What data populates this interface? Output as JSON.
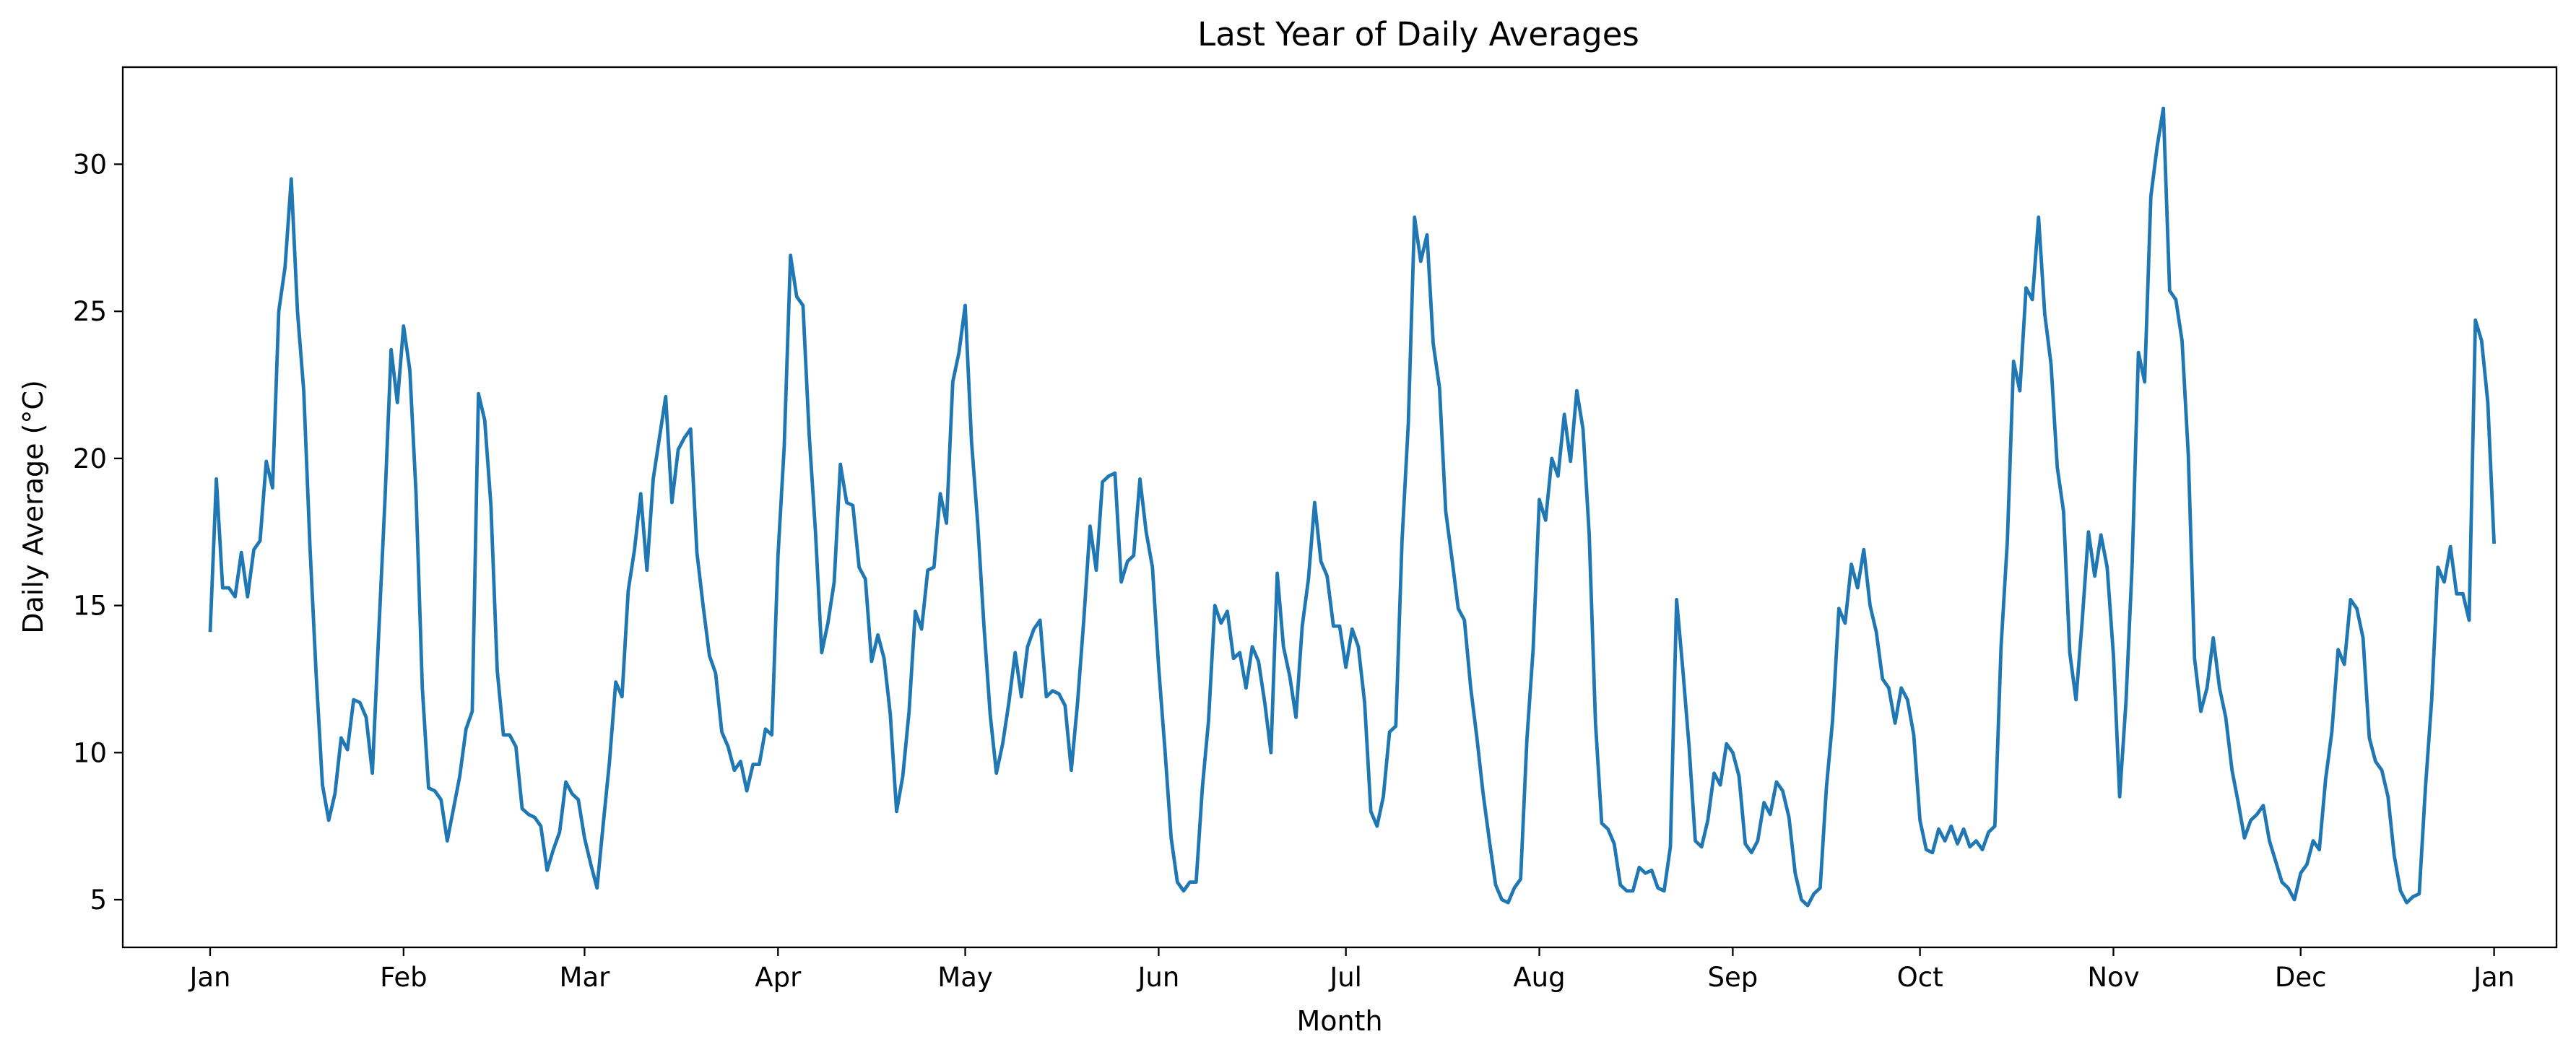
{
  "chart_data": {
    "type": "line",
    "title": "Last Year of Daily Averages",
    "xlabel": "Month",
    "ylabel": "Daily Average (°C)",
    "x_start": "2024-01-01",
    "x_end": "2024-12-28",
    "xlim": [
      "2023-12-18",
      "2025-01-11"
    ],
    "ylim": [
      3.38,
      33.3
    ],
    "grid": false,
    "x_ticks": [
      {
        "date": "2024-01-01",
        "label": "Jan"
      },
      {
        "date": "2024-02-01",
        "label": "Feb"
      },
      {
        "date": "2024-03-01",
        "label": "Mar"
      },
      {
        "date": "2024-04-01",
        "label": "Apr"
      },
      {
        "date": "2024-05-01",
        "label": "May"
      },
      {
        "date": "2024-06-01",
        "label": "Jun"
      },
      {
        "date": "2024-07-01",
        "label": "Jul"
      },
      {
        "date": "2024-08-01",
        "label": "Aug"
      },
      {
        "date": "2024-09-01",
        "label": "Sep"
      },
      {
        "date": "2024-10-01",
        "label": "Oct"
      },
      {
        "date": "2024-11-01",
        "label": "Nov"
      },
      {
        "date": "2024-12-01",
        "label": "Dec"
      },
      {
        "date": "2025-01-01",
        "label": "Jan"
      }
    ],
    "y_ticks": [
      {
        "value": 5,
        "label": "5"
      },
      {
        "value": 10,
        "label": "10"
      },
      {
        "value": 15,
        "label": "15"
      },
      {
        "value": 20,
        "label": "20"
      },
      {
        "value": 25,
        "label": "25"
      },
      {
        "value": 30,
        "label": "30"
      }
    ],
    "series": [
      {
        "color": "#1f77b4",
        "values": [
          14.1,
          19.3,
          15.6,
          15.6,
          15.3,
          16.8,
          15.3,
          16.9,
          17.2,
          19.9,
          19.0,
          25.0,
          26.5,
          29.5,
          25.0,
          22.3,
          17.0,
          12.6,
          8.9,
          7.7,
          8.6,
          10.5,
          10.1,
          11.8,
          11.7,
          11.2,
          9.3,
          14.0,
          18.5,
          23.7,
          21.9,
          24.5,
          23.0,
          18.8,
          12.2,
          8.8,
          8.7,
          8.4,
          7.0,
          8.1,
          9.2,
          10.8,
          11.4,
          22.2,
          21.3,
          18.4,
          12.8,
          10.6,
          10.6,
          10.2,
          8.1,
          7.9,
          7.8,
          7.5,
          6.0,
          6.7,
          7.3,
          9.0,
          8.6,
          8.4,
          7.1,
          6.2,
          5.4,
          7.6,
          9.7,
          12.4,
          11.9,
          15.5,
          16.9,
          18.8,
          16.2,
          19.3,
          20.7,
          22.1,
          18.5,
          20.3,
          20.7,
          21.0,
          16.8,
          15.0,
          13.3,
          12.7,
          10.7,
          10.2,
          9.4,
          9.7,
          8.7,
          9.6,
          9.6,
          10.8,
          10.6,
          16.7,
          20.4,
          26.9,
          25.5,
          25.2,
          20.8,
          17.5,
          13.4,
          14.4,
          15.8,
          19.8,
          18.5,
          18.4,
          16.3,
          15.9,
          13.1,
          14.0,
          13.2,
          11.3,
          8.0,
          9.2,
          11.4,
          14.8,
          14.2,
          16.2,
          16.3,
          18.8,
          17.8,
          22.6,
          23.6,
          25.2,
          20.6,
          17.8,
          14.3,
          11.3,
          9.3,
          10.3,
          11.7,
          13.4,
          11.9,
          13.6,
          14.2,
          14.5,
          11.9,
          12.1,
          12.0,
          11.6,
          9.4,
          11.7,
          14.5,
          17.7,
          16.2,
          19.2,
          19.4,
          19.5,
          15.8,
          16.5,
          16.7,
          19.3,
          17.5,
          16.3,
          12.9,
          10.1,
          7.1,
          5.6,
          5.3,
          5.6,
          5.6,
          8.8,
          11.1,
          15.0,
          14.4,
          14.8,
          13.2,
          13.4,
          12.2,
          13.6,
          13.1,
          11.7,
          10.0,
          16.1,
          13.6,
          12.6,
          11.2,
          14.3,
          15.9,
          18.5,
          16.5,
          16.0,
          14.3,
          14.3,
          12.9,
          14.2,
          13.6,
          11.7,
          8.0,
          7.5,
          8.5,
          10.7,
          10.9,
          17.2,
          21.2,
          28.2,
          26.7,
          27.6,
          23.9,
          22.4,
          18.2,
          16.6,
          14.9,
          14.5,
          12.2,
          10.5,
          8.6,
          7.0,
          5.5,
          5.0,
          4.9,
          5.4,
          5.7,
          10.4,
          13.5,
          18.6,
          17.9,
          20.0,
          19.4,
          21.5,
          19.9,
          22.3,
          21.0,
          17.4,
          11.0,
          7.6,
          7.4,
          6.9,
          5.5,
          5.3,
          5.3,
          6.1,
          5.9,
          6.0,
          5.4,
          5.3,
          6.8,
          15.2,
          12.8,
          10.2,
          7.0,
          6.8,
          7.7,
          9.3,
          8.9,
          10.3,
          10.0,
          9.2,
          6.9,
          6.6,
          7.0,
          8.3,
          7.9,
          9.0,
          8.7,
          7.8,
          5.9,
          5.0,
          4.8,
          5.2,
          5.4,
          8.8,
          11.1,
          14.9,
          14.4,
          16.4,
          15.6,
          16.9,
          15.0,
          14.1,
          12.5,
          12.2,
          11.0,
          12.2,
          11.8,
          10.6,
          7.7,
          6.7,
          6.6,
          7.4,
          7.0,
          7.5,
          6.9,
          7.4,
          6.8,
          7.0,
          6.7,
          7.3,
          7.5,
          13.6,
          17.2,
          23.3,
          22.3,
          25.8,
          25.4,
          28.2,
          24.9,
          23.2,
          19.7,
          18.2,
          13.4,
          11.8,
          14.5,
          17.5,
          16.0,
          17.4,
          16.3,
          13.3,
          8.5,
          11.7,
          16.4,
          23.6,
          22.6,
          28.9,
          30.6,
          31.9,
          25.7,
          25.4,
          24.0,
          20.1,
          13.2,
          11.4,
          12.2,
          13.9,
          12.2,
          11.2,
          9.4,
          8.3,
          7.1,
          7.7,
          7.9,
          8.2,
          7.0,
          6.3,
          5.6,
          5.4,
          5.0,
          5.9,
          6.2,
          7.0,
          6.7,
          9.1,
          10.7,
          13.5,
          13.0,
          15.2,
          14.9,
          13.9,
          10.5,
          9.7,
          9.4,
          8.5,
          6.5,
          5.3,
          4.9,
          5.1,
          5.2,
          8.8,
          11.8,
          16.3,
          15.8,
          17.0,
          15.4,
          15.4,
          14.5,
          24.7,
          24.0,
          21.9,
          17.1
        ]
      }
    ]
  }
}
